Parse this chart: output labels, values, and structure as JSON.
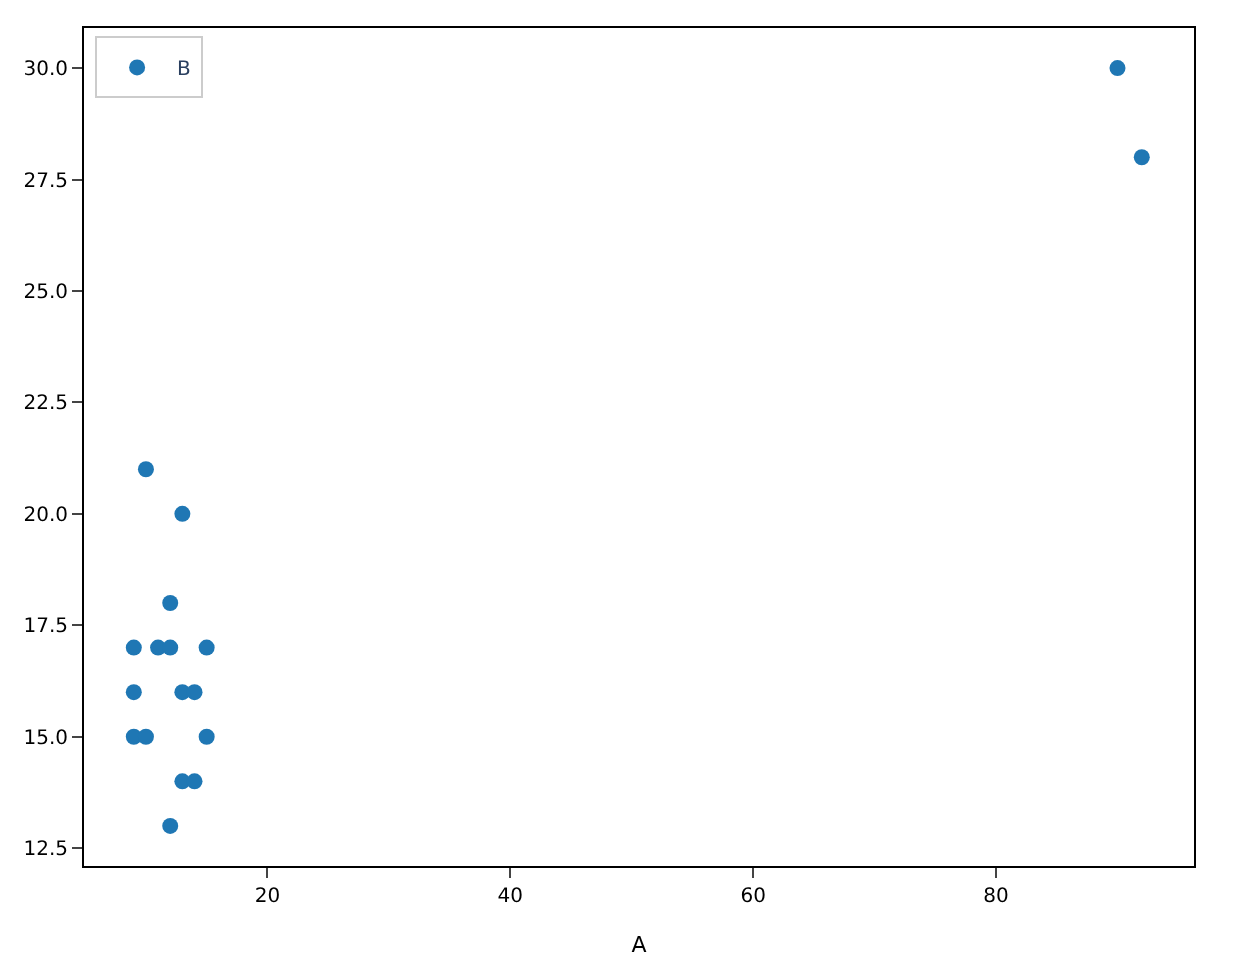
{
  "chart_data": {
    "type": "scatter",
    "xlabel": "A",
    "x": [
      10,
      13,
      12,
      9,
      11,
      12,
      15,
      9,
      13,
      14,
      9,
      10,
      15,
      13,
      14,
      12,
      90,
      92
    ],
    "series": [
      {
        "name": "B",
        "color": "#1f77b4",
        "values": [
          21,
          20,
          18,
          17,
          17,
          17,
          17,
          16,
          16,
          16,
          15,
          15,
          15,
          14,
          14,
          13,
          30,
          28
        ]
      }
    ],
    "xlim": [
      4.9,
      96.3
    ],
    "ylim": [
      12.1,
      30.9
    ],
    "xticks": [
      20,
      40,
      60,
      80
    ],
    "yticks": [
      {
        "value": 12.5,
        "label": "12.5"
      },
      {
        "value": 15,
        "label": "15.0"
      },
      {
        "value": 17.5,
        "label": "17.5"
      },
      {
        "value": 20,
        "label": "20.0"
      },
      {
        "value": 22.5,
        "label": "22.5"
      },
      {
        "value": 25,
        "label": "25.0"
      },
      {
        "value": 27.5,
        "label": "27.5"
      },
      {
        "value": 30,
        "label": "30.0"
      }
    ],
    "legend": "top left",
    "marker": "circle"
  }
}
